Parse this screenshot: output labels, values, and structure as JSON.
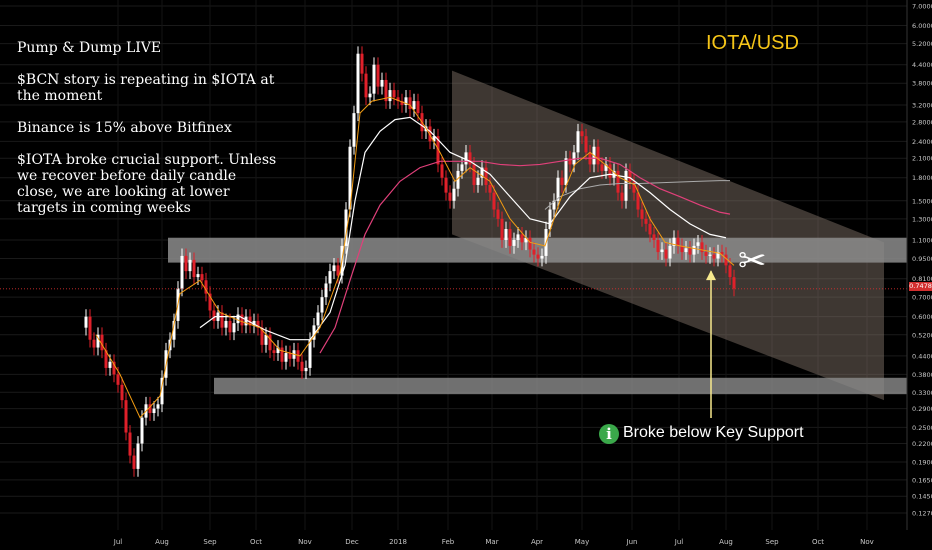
{
  "header": {
    "title": "IOTA/USD"
  },
  "notes": [
    "Pump & Dump LIVE",
    "$BCN story is repeating in $IOTA at\nthe moment",
    "Binance is 15% above Bitfinex",
    "$IOTA broke crucial support. Unless\nwe recover before daily candle\nclose, we are looking at lower\ntargets in coming weeks"
  ],
  "annotation": {
    "text": "Broke below Key Support",
    "icon": "info-icon",
    "glyph": "i",
    "color": "#3aa84a"
  },
  "scissors_glyph": "✂",
  "colors": {
    "up": "#ffffff",
    "down": "#e0202a",
    "ema_fast": "#f39c12",
    "ema_mid": "#ffffff",
    "ema_slow": "#e0407a",
    "ema_long": "#aaaaaa",
    "channel": "#8a7a6e",
    "zone": "#8c8c8c",
    "arrow": "#f7e98e",
    "title": "#f5c518",
    "last_price_line": "#d32f2f"
  },
  "chart_data": {
    "type": "candlestick",
    "scale": "log",
    "ylim": [
      0.13,
      7.0
    ],
    "y_ticks": [
      "7.0000",
      "6.0000",
      "5.2000",
      "4.4000",
      "3.8000",
      "3.2000",
      "2.8000",
      "2.4000",
      "2.1000",
      "1.8000",
      "1.5000",
      "1.3000",
      "1.1000",
      "0.9500",
      "0.8100",
      "0.7000",
      "0.6000",
      "0.5200",
      "0.4400",
      "0.3800",
      "0.3300",
      "0.2900",
      "0.2500",
      "0.2200",
      "0.1900",
      "0.1650",
      "0.1450",
      "0.1270"
    ],
    "y_tick_values": [
      7.0,
      6.0,
      5.2,
      4.4,
      3.8,
      3.2,
      2.8,
      2.4,
      2.1,
      1.8,
      1.5,
      1.3,
      1.1,
      0.95,
      0.81,
      0.7,
      0.6,
      0.52,
      0.44,
      0.38,
      0.33,
      0.29,
      0.25,
      0.22,
      0.19,
      0.165,
      0.145,
      0.127
    ],
    "x_ticks": [
      "Jul",
      "Aug",
      "Sep",
      "Oct",
      "Nov",
      "Dec",
      "2018",
      "Feb",
      "Mar",
      "Apr",
      "May",
      "Jun",
      "Jul",
      "Aug",
      "Sep",
      "Oct",
      "Nov"
    ],
    "x_tick_positions": [
      118,
      162,
      210,
      256,
      305,
      352,
      398,
      448,
      492,
      537,
      582,
      632,
      679,
      726,
      772,
      818,
      867
    ],
    "last_price": "0.7478",
    "last_price_value": 0.7478,
    "support_zone_high": [
      0.92,
      1.12
    ],
    "support_zone_low": [
      0.325,
      0.37
    ],
    "price_path": [
      [
        82,
        0.55
      ],
      [
        86,
        0.6
      ],
      [
        90,
        0.5
      ],
      [
        94,
        0.47
      ],
      [
        98,
        0.52
      ],
      [
        102,
        0.46
      ],
      [
        106,
        0.4
      ],
      [
        110,
        0.42
      ],
      [
        114,
        0.38
      ],
      [
        118,
        0.35
      ],
      [
        122,
        0.31
      ],
      [
        126,
        0.24
      ],
      [
        130,
        0.2
      ],
      [
        134,
        0.18
      ],
      [
        138,
        0.22
      ],
      [
        142,
        0.27
      ],
      [
        146,
        0.3
      ],
      [
        150,
        0.28
      ],
      [
        154,
        0.29
      ],
      [
        158,
        0.3
      ],
      [
        162,
        0.37
      ],
      [
        166,
        0.46
      ],
      [
        170,
        0.5
      ],
      [
        174,
        0.58
      ],
      [
        178,
        0.75
      ],
      [
        182,
        0.97
      ],
      [
        186,
        0.86
      ],
      [
        190,
        0.94
      ],
      [
        194,
        0.82
      ],
      [
        198,
        0.84
      ],
      [
        202,
        0.8
      ],
      [
        206,
        0.72
      ],
      [
        210,
        0.63
      ],
      [
        214,
        0.58
      ],
      [
        218,
        0.62
      ],
      [
        222,
        0.55
      ],
      [
        226,
        0.58
      ],
      [
        230,
        0.53
      ],
      [
        234,
        0.57
      ],
      [
        238,
        0.61
      ],
      [
        242,
        0.56
      ],
      [
        246,
        0.6
      ],
      [
        250,
        0.56
      ],
      [
        254,
        0.58
      ],
      [
        258,
        0.55
      ],
      [
        262,
        0.48
      ],
      [
        266,
        0.52
      ],
      [
        270,
        0.46
      ],
      [
        274,
        0.45
      ],
      [
        278,
        0.47
      ],
      [
        282,
        0.42
      ],
      [
        286,
        0.45
      ],
      [
        290,
        0.43
      ],
      [
        294,
        0.46
      ],
      [
        298,
        0.42
      ],
      [
        302,
        0.39
      ],
      [
        306,
        0.4
      ],
      [
        310,
        0.5
      ],
      [
        314,
        0.56
      ],
      [
        318,
        0.62
      ],
      [
        322,
        0.7
      ],
      [
        326,
        0.78
      ],
      [
        330,
        0.86
      ],
      [
        334,
        0.9
      ],
      [
        338,
        0.83
      ],
      [
        342,
        1.05
      ],
      [
        346,
        1.4
      ],
      [
        350,
        2.3
      ],
      [
        354,
        3.0
      ],
      [
        358,
        4.8
      ],
      [
        362,
        4.1
      ],
      [
        366,
        3.4
      ],
      [
        370,
        3.5
      ],
      [
        374,
        4.4
      ],
      [
        378,
        3.7
      ],
      [
        382,
        3.9
      ],
      [
        386,
        3.3
      ],
      [
        390,
        3.6
      ],
      [
        394,
        3.4
      ],
      [
        398,
        3.3
      ],
      [
        402,
        3.2
      ],
      [
        406,
        3.4
      ],
      [
        410,
        3.1
      ],
      [
        414,
        3.3
      ],
      [
        418,
        3.0
      ],
      [
        422,
        2.6
      ],
      [
        426,
        2.7
      ],
      [
        430,
        2.4
      ],
      [
        434,
        2.5
      ],
      [
        438,
        2.0
      ],
      [
        442,
        1.8
      ],
      [
        446,
        1.6
      ],
      [
        450,
        1.5
      ],
      [
        454,
        1.65
      ],
      [
        458,
        1.9
      ],
      [
        462,
        2.0
      ],
      [
        466,
        2.2
      ],
      [
        470,
        2.0
      ],
      [
        474,
        1.7
      ],
      [
        478,
        1.8
      ],
      [
        482,
        1.95
      ],
      [
        486,
        1.7
      ],
      [
        490,
        1.6
      ],
      [
        494,
        1.4
      ],
      [
        498,
        1.3
      ],
      [
        502,
        1.1
      ],
      [
        506,
        1.2
      ],
      [
        510,
        1.05
      ],
      [
        514,
        1.1
      ],
      [
        518,
        1.15
      ],
      [
        522,
        1.08
      ],
      [
        526,
        1.12
      ],
      [
        530,
        1.02
      ],
      [
        534,
        0.98
      ],
      [
        538,
        0.95
      ],
      [
        542,
        0.97
      ],
      [
        546,
        1.2
      ],
      [
        550,
        1.4
      ],
      [
        554,
        1.5
      ],
      [
        558,
        1.8
      ],
      [
        562,
        1.7
      ],
      [
        566,
        2.1
      ],
      [
        570,
        2.0
      ],
      [
        574,
        2.2
      ],
      [
        578,
        2.6
      ],
      [
        582,
        2.5
      ],
      [
        586,
        2.2
      ],
      [
        590,
        2.0
      ],
      [
        594,
        2.3
      ],
      [
        598,
        2.0
      ],
      [
        602,
        1.9
      ],
      [
        606,
        2.0
      ],
      [
        610,
        1.8
      ],
      [
        614,
        1.9
      ],
      [
        618,
        1.6
      ],
      [
        622,
        1.5
      ],
      [
        626,
        1.9
      ],
      [
        630,
        1.75
      ],
      [
        634,
        1.6
      ],
      [
        638,
        1.4
      ],
      [
        642,
        1.3
      ],
      [
        646,
        1.25
      ],
      [
        650,
        1.15
      ],
      [
        654,
        1.1
      ],
      [
        658,
        1.0
      ],
      [
        662,
        1.02
      ],
      [
        666,
        0.95
      ],
      [
        670,
        1.05
      ],
      [
        674,
        1.12
      ],
      [
        678,
        1.05
      ],
      [
        682,
        1.0
      ],
      [
        686,
        1.03
      ],
      [
        690,
        0.98
      ],
      [
        694,
        1.05
      ],
      [
        698,
        1.08
      ],
      [
        702,
        1.0
      ],
      [
        706,
        0.97
      ],
      [
        710,
        0.98
      ],
      [
        714,
        0.95
      ],
      [
        718,
        1.0
      ],
      [
        722,
        0.98
      ],
      [
        726,
        0.9
      ],
      [
        730,
        0.82
      ],
      [
        734,
        0.75
      ]
    ],
    "ema_fast_path": [
      [
        96,
        0.52
      ],
      [
        120,
        0.38
      ],
      [
        140,
        0.27
      ],
      [
        160,
        0.32
      ],
      [
        180,
        0.72
      ],
      [
        200,
        0.8
      ],
      [
        220,
        0.62
      ],
      [
        240,
        0.58
      ],
      [
        260,
        0.55
      ],
      [
        280,
        0.46
      ],
      [
        300,
        0.44
      ],
      [
        320,
        0.55
      ],
      [
        340,
        0.85
      ],
      [
        350,
        1.4
      ],
      [
        360,
        3.0
      ],
      [
        372,
        3.3
      ],
      [
        390,
        3.4
      ],
      [
        410,
        3.2
      ],
      [
        425,
        2.7
      ],
      [
        440,
        2.2
      ],
      [
        455,
        1.75
      ],
      [
        470,
        1.95
      ],
      [
        490,
        1.75
      ],
      [
        510,
        1.3
      ],
      [
        530,
        1.08
      ],
      [
        545,
        1.05
      ],
      [
        560,
        1.5
      ],
      [
        575,
        2.0
      ],
      [
        590,
        2.2
      ],
      [
        605,
        2.0
      ],
      [
        620,
        1.8
      ],
      [
        635,
        1.7
      ],
      [
        650,
        1.3
      ],
      [
        665,
        1.08
      ],
      [
        680,
        1.05
      ],
      [
        700,
        1.02
      ],
      [
        720,
        0.99
      ],
      [
        734,
        0.9
      ]
    ],
    "ema_mid_path": [
      [
        200,
        0.55
      ],
      [
        215,
        0.6
      ],
      [
        240,
        0.6
      ],
      [
        265,
        0.54
      ],
      [
        290,
        0.5
      ],
      [
        310,
        0.5
      ],
      [
        330,
        0.62
      ],
      [
        345,
        0.9
      ],
      [
        355,
        1.5
      ],
      [
        365,
        2.2
      ],
      [
        380,
        2.6
      ],
      [
        395,
        2.85
      ],
      [
        410,
        2.9
      ],
      [
        430,
        2.6
      ],
      [
        450,
        2.2
      ],
      [
        470,
        2.05
      ],
      [
        490,
        1.85
      ],
      [
        510,
        1.55
      ],
      [
        530,
        1.3
      ],
      [
        550,
        1.25
      ],
      [
        570,
        1.55
      ],
      [
        590,
        1.8
      ],
      [
        610,
        1.85
      ],
      [
        630,
        1.8
      ],
      [
        650,
        1.6
      ],
      [
        670,
        1.4
      ],
      [
        690,
        1.25
      ],
      [
        710,
        1.15
      ],
      [
        726,
        1.12
      ]
    ],
    "ema_slow_path": [
      [
        320,
        0.45
      ],
      [
        335,
        0.55
      ],
      [
        350,
        0.8
      ],
      [
        365,
        1.15
      ],
      [
        380,
        1.45
      ],
      [
        400,
        1.75
      ],
      [
        420,
        1.95
      ],
      [
        440,
        2.05
      ],
      [
        460,
        2.05
      ],
      [
        480,
        2.05
      ],
      [
        500,
        2.0
      ],
      [
        520,
        1.98
      ],
      [
        540,
        2.0
      ],
      [
        560,
        2.05
      ],
      [
        580,
        2.1
      ],
      [
        600,
        2.1
      ],
      [
        620,
        2.0
      ],
      [
        640,
        1.8
      ],
      [
        660,
        1.65
      ],
      [
        680,
        1.55
      ],
      [
        700,
        1.45
      ],
      [
        720,
        1.37
      ],
      [
        730,
        1.35
      ]
    ],
    "ema_long_path": [
      [
        545,
        1.4
      ],
      [
        560,
        1.55
      ],
      [
        580,
        1.65
      ],
      [
        600,
        1.7
      ],
      [
        620,
        1.72
      ],
      [
        640,
        1.72
      ],
      [
        660,
        1.73
      ],
      [
        680,
        1.74
      ],
      [
        700,
        1.75
      ],
      [
        720,
        1.76
      ],
      [
        730,
        1.76
      ]
    ]
  }
}
